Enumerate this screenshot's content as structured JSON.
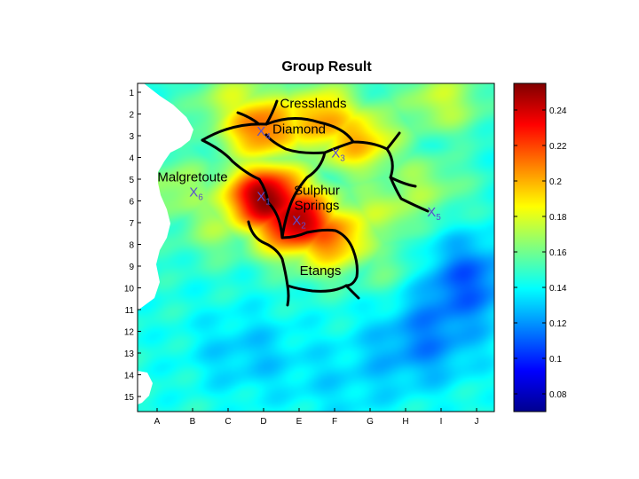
{
  "chart_data": {
    "type": "heatmap",
    "title": "Group Result",
    "xlabel": "",
    "ylabel": "",
    "x_ticks": [
      "A",
      "B",
      "C",
      "D",
      "E",
      "F",
      "G",
      "H",
      "I",
      "J"
    ],
    "y_ticks": [
      "1",
      "2",
      "3",
      "4",
      "5",
      "6",
      "7",
      "8",
      "9",
      "10",
      "11",
      "12",
      "13",
      "14",
      "15"
    ],
    "colorbar": {
      "min": 0.07,
      "max": 0.255,
      "ticks": [
        0.08,
        0.1,
        0.12,
        0.14,
        0.16,
        0.18,
        0.2,
        0.22,
        0.24
      ],
      "tick_labels": [
        "0.08",
        "0.1",
        "0.12",
        "0.14",
        "0.16",
        "0.18",
        "0.2",
        "0.22",
        "0.24"
      ],
      "colormap": "jet"
    },
    "colors": {
      "marker": "#5a4fcf"
    },
    "places": [
      {
        "name": "Cresslands",
        "x": 4.4,
        "y": 1.5
      },
      {
        "name": "Diamond",
        "x": 4.0,
        "y": 2.7
      },
      {
        "name": "Malgretoute",
        "x": 1.0,
        "y": 4.9
      },
      {
        "name": "Sulphur",
        "x": 4.5,
        "y": 5.5
      },
      {
        "name": "Springs",
        "x": 4.5,
        "y": 6.2
      },
      {
        "name": "Etangs",
        "x": 4.6,
        "y": 9.2
      }
    ],
    "markers": [
      {
        "label": "X",
        "sub": "1",
        "x": 3.0,
        "y": 5.8
      },
      {
        "label": "X",
        "sub": "2",
        "x": 4.0,
        "y": 6.9
      },
      {
        "label": "X",
        "sub": "3",
        "x": 5.1,
        "y": 3.8
      },
      {
        "label": "X",
        "sub": "4",
        "x": 3.0,
        "y": 2.8
      },
      {
        "label": "X",
        "sub": "5",
        "x": 7.8,
        "y": 6.5
      },
      {
        "label": "X",
        "sub": "6",
        "x": 1.1,
        "y": 5.6
      }
    ],
    "field_peaks": [
      {
        "x": 3.1,
        "y": 5.9,
        "v": 0.255
      },
      {
        "x": 3.9,
        "y": 6.9,
        "v": 0.25
      },
      {
        "x": 3.0,
        "y": 2.6,
        "v": 0.215
      },
      {
        "x": 4.6,
        "y": 2.3,
        "v": 0.205
      },
      {
        "x": 5.6,
        "y": 3.2,
        "v": 0.2
      },
      {
        "x": 4.8,
        "y": 7.6,
        "v": 0.215
      },
      {
        "x": 2.3,
        "y": 1.6,
        "v": 0.18
      },
      {
        "x": 0.6,
        "y": 5.5,
        "v": 0.17
      },
      {
        "x": 1.8,
        "y": 7.0,
        "v": 0.17
      },
      {
        "x": 6.4,
        "y": 6.5,
        "v": 0.175
      },
      {
        "x": 8.0,
        "y": 1.4,
        "v": 0.175
      },
      {
        "x": 7.4,
        "y": 5.4,
        "v": 0.17
      },
      {
        "x": 6.7,
        "y": 9.0,
        "v": 0.165
      }
    ],
    "field_lows": [
      {
        "x": 8.6,
        "y": 9.6,
        "v": 0.11
      },
      {
        "x": 7.5,
        "y": 12.6,
        "v": 0.12
      },
      {
        "x": 2.5,
        "y": 13.0,
        "v": 0.13
      },
      {
        "x": 5.2,
        "y": 14.6,
        "v": 0.135
      }
    ]
  }
}
